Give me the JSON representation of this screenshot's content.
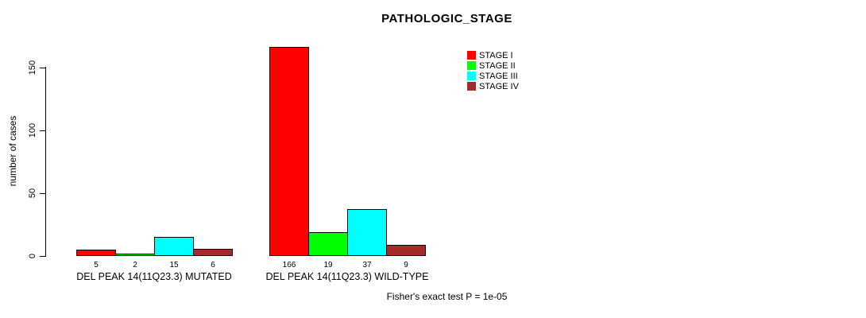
{
  "title": "PATHOLOGIC_STAGE",
  "footer_note": "Fisher's exact test P = 1e-05",
  "legend": {
    "items": [
      {
        "label": "STAGE I",
        "color": "#ff0000"
      },
      {
        "label": "STAGE II",
        "color": "#00ff00"
      },
      {
        "label": "STAGE III",
        "color": "#00ffff"
      },
      {
        "label": "STAGE IV",
        "color": "#a52a2a"
      }
    ]
  },
  "chart_data": {
    "type": "bar",
    "title": "PATHOLOGIC_STAGE",
    "xlabel": "",
    "ylabel": "number of cases",
    "ylim": [
      0,
      170
    ],
    "yticks": [
      0,
      50,
      100,
      150
    ],
    "grid": false,
    "legend_position": "top-right",
    "series": [
      "STAGE I",
      "STAGE II",
      "STAGE III",
      "STAGE IV"
    ],
    "colors": [
      "#ff0000",
      "#00ff00",
      "#00ffff",
      "#a52a2a"
    ],
    "groups": [
      {
        "label": "DEL PEAK 14(11Q23.3) MUTATED",
        "values": [
          5,
          2,
          15,
          6
        ]
      },
      {
        "label": "DEL PEAK 14(11Q23.3) WILD-TYPE",
        "values": [
          166,
          19,
          37,
          9
        ]
      }
    ],
    "annotation": "Fisher's exact test P = 1e-05"
  }
}
